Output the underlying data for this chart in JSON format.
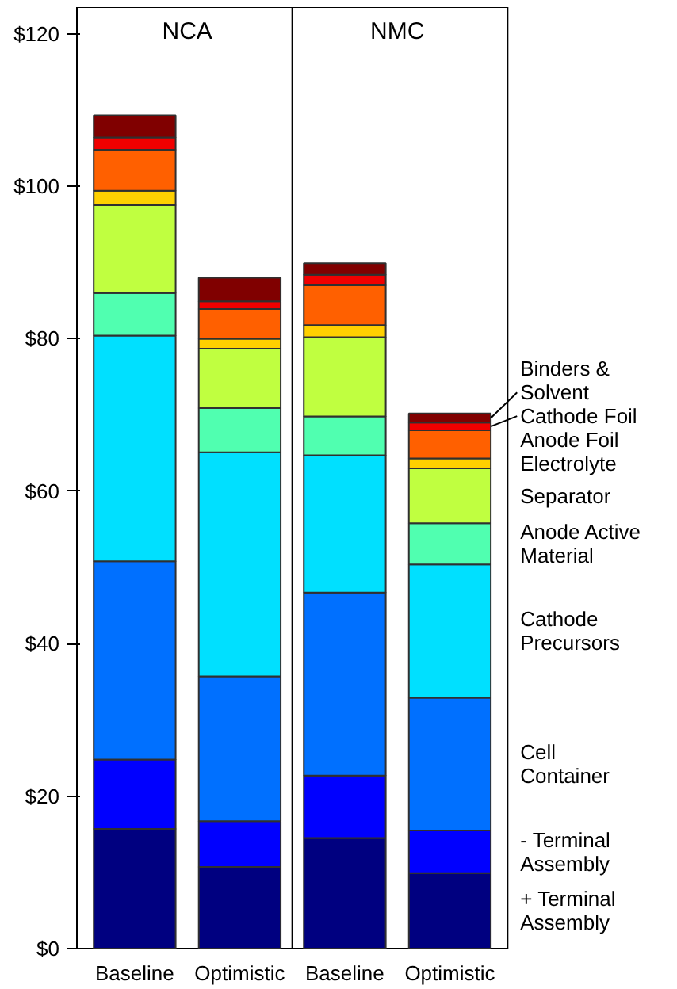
{
  "chart_data": {
    "type": "bar",
    "stacked": true,
    "categories": [
      "Baseline",
      "Optimistic",
      "Baseline",
      "Optimistic"
    ],
    "annotations": [
      "NCA",
      "NMC"
    ],
    "ylim": [
      0,
      123.5
    ],
    "yticks": [
      {
        "value": 0,
        "label": "$0"
      },
      {
        "value": 20,
        "label": "$20"
      },
      {
        "value": 40,
        "label": "$40"
      },
      {
        "value": 60,
        "label": "$60"
      },
      {
        "value": 80,
        "label": "$80"
      },
      {
        "value": 100,
        "label": "$100"
      },
      {
        "value": 120,
        "label": "$120"
      }
    ],
    "grid": false,
    "series": [
      {
        "name": "+ Terminal Assembly",
        "color": "#000080",
        "values": [
          15.7,
          10.7,
          14.5,
          9.9
        ]
      },
      {
        "name": "- Terminal Assembly",
        "color": "#0000ff",
        "values": [
          9.1,
          6.0,
          8.2,
          5.6
        ]
      },
      {
        "name": "Cell Container",
        "color": "#0070ff",
        "values": [
          26.0,
          19.0,
          24.0,
          17.4
        ]
      },
      {
        "name": "Cathode Precursors",
        "color": "#00e0ff",
        "values": [
          29.6,
          29.4,
          18.0,
          17.5
        ]
      },
      {
        "name": "Anode Active Material",
        "color": "#50ffb0",
        "values": [
          5.6,
          5.8,
          5.1,
          5.4
        ]
      },
      {
        "name": "Separator",
        "color": "#c0ff40",
        "values": [
          11.5,
          7.8,
          10.4,
          7.2
        ]
      },
      {
        "name": "Electrolyte",
        "color": "#ffd000",
        "values": [
          1.9,
          1.3,
          1.6,
          1.3
        ]
      },
      {
        "name": "Anode Foil",
        "color": "#ff6000",
        "values": [
          5.4,
          3.9,
          5.2,
          3.7
        ]
      },
      {
        "name": "Cathode Foil",
        "color": "#f00000",
        "values": [
          1.6,
          1.0,
          1.4,
          1.0
        ]
      },
      {
        "name": "Binders & Solvent",
        "color": "#800000",
        "values": [
          2.9,
          3.1,
          1.5,
          1.2
        ]
      }
    ]
  }
}
